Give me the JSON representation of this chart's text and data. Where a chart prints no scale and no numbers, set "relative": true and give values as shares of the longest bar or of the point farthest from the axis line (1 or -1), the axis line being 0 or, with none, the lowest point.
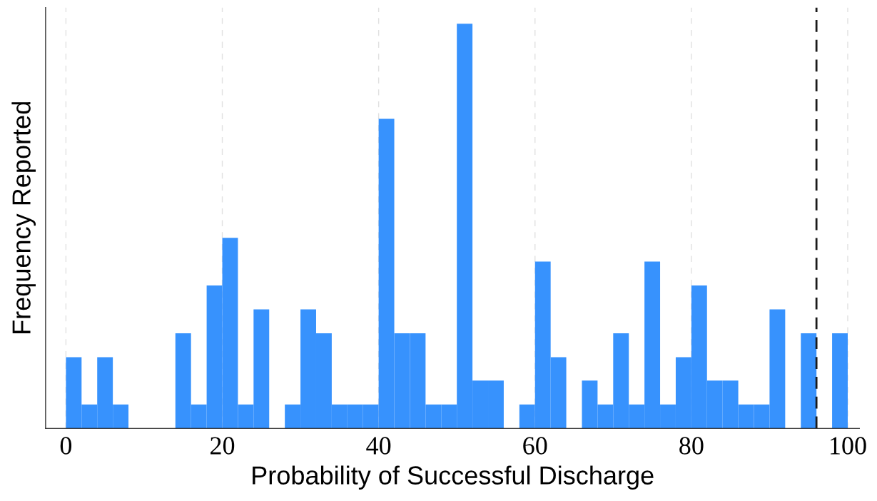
{
  "chart_data": {
    "type": "bar",
    "xlabel": "Probability of Successful Discharge",
    "ylabel": "Frequency Reported",
    "relative": true,
    "color": "#3792fd",
    "x": [
      1,
      3,
      5,
      7,
      9,
      11,
      13,
      15,
      17,
      19,
      21,
      23,
      25,
      27,
      29,
      31,
      33,
      35,
      37,
      39,
      41,
      43,
      45,
      47,
      49,
      51,
      53,
      55,
      57,
      59,
      61,
      63,
      65,
      67,
      69,
      71,
      73,
      75,
      77,
      79,
      81,
      83,
      85,
      87,
      89,
      91,
      93,
      95,
      97,
      99
    ],
    "values": [
      0.176,
      0.059,
      0.176,
      0.059,
      0,
      0,
      0,
      0.235,
      0.059,
      0.353,
      0.471,
      0.059,
      0.294,
      0,
      0.059,
      0.294,
      0.235,
      0.059,
      0.059,
      0.059,
      0.765,
      0.235,
      0.235,
      0.059,
      0.059,
      1,
      0.118,
      0.118,
      0,
      0.059,
      0.412,
      0.176,
      0,
      0.118,
      0.059,
      0.235,
      0.059,
      0.412,
      0.059,
      0.176,
      0.353,
      0.118,
      0.118,
      0.059,
      0.059,
      0.294,
      0,
      0.235,
      0,
      0.235
    ],
    "xlim": [
      -2.6,
      101.5
    ],
    "xticks": [
      0,
      20,
      40,
      60,
      80,
      100
    ],
    "grid": "x",
    "ref_lines": [
      {
        "axis": "x",
        "value": 96,
        "label": null,
        "color": "#1a1a1a",
        "line_style": "dashed"
      }
    ]
  }
}
